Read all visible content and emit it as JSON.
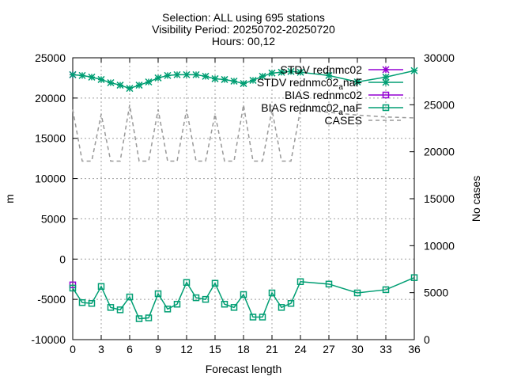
{
  "chart_data": {
    "type": "line",
    "title_lines": [
      "Selection: ALL using   695 stations",
      "Visibility   Period: 20250702-20250720",
      "Hours: 00,12"
    ],
    "xlabel": "Forecast length",
    "ylabel": "m",
    "y2label": "No cases",
    "xlim": [
      0,
      36
    ],
    "ylim": [
      -10000,
      25000
    ],
    "y2lim": [
      0,
      30000
    ],
    "xticks": [
      0,
      3,
      6,
      9,
      12,
      15,
      18,
      21,
      24,
      27,
      30,
      33,
      36
    ],
    "yticks": [
      -10000,
      -5000,
      0,
      5000,
      10000,
      15000,
      20000,
      25000
    ],
    "y2ticks": [
      0,
      5000,
      10000,
      15000,
      20000,
      25000,
      30000
    ],
    "grid": true,
    "legend_position": "top-right",
    "colors": {
      "redNMC": "#9400d3",
      "redNMC_naF": "#009e73",
      "cases": "#999999"
    },
    "series": [
      {
        "name": "STDV rednmc02",
        "legend_base": "STDV rednmc02",
        "legend_sub": "",
        "legend_tail": "",
        "color": "#9400d3",
        "marker": "star",
        "axis": "y",
        "x": [
          0
        ],
        "values": [
          22900
        ]
      },
      {
        "name": "STDV rednmc02_naF",
        "legend_base": "STDV rednmc02",
        "legend_sub": "a",
        "legend_tail": "naF",
        "color": "#009e73",
        "marker": "star",
        "axis": "y",
        "x": [
          0,
          1,
          2,
          3,
          4,
          5,
          6,
          7,
          8,
          9,
          10,
          11,
          12,
          13,
          14,
          15,
          16,
          17,
          18,
          19,
          20,
          21,
          22,
          23,
          24,
          27,
          30,
          33,
          36
        ],
        "values": [
          22900,
          22800,
          22600,
          22300,
          21900,
          21600,
          21200,
          21600,
          22000,
          22500,
          22800,
          22900,
          22900,
          22900,
          22700,
          22400,
          22300,
          22100,
          21800,
          22200,
          22700,
          23100,
          23200,
          23300,
          23200,
          22800,
          22000,
          22600,
          23400
        ]
      },
      {
        "name": "BIAS rednmc02",
        "legend_base": "BIAS rednmc02",
        "legend_sub": "",
        "legend_tail": "",
        "color": "#9400d3",
        "marker": "square",
        "axis": "y",
        "x": [
          0
        ],
        "values": [
          -3200
        ]
      },
      {
        "name": "BIAS rednmc02_naF",
        "legend_base": "BIAS rednmc02",
        "legend_sub": "a",
        "legend_tail": "naF",
        "color": "#009e73",
        "marker": "square",
        "axis": "y",
        "x": [
          0,
          1,
          2,
          3,
          4,
          5,
          6,
          7,
          8,
          9,
          10,
          11,
          12,
          13,
          14,
          15,
          16,
          17,
          18,
          19,
          20,
          21,
          22,
          23,
          24,
          27,
          30,
          33,
          36
        ],
        "values": [
          -3600,
          -5400,
          -5500,
          -3400,
          -6000,
          -6300,
          -4700,
          -7400,
          -7300,
          -4300,
          -6200,
          -5600,
          -2900,
          -4800,
          -5000,
          -3000,
          -5600,
          -6000,
          -4400,
          -7200,
          -7200,
          -4200,
          -6000,
          -5500,
          -2800,
          -3100,
          -4200,
          -3800,
          -2300
        ]
      },
      {
        "name": "CASES",
        "legend_base": "CASES",
        "legend_sub": "",
        "legend_tail": "",
        "color": "#999999",
        "marker": "none",
        "dashed": true,
        "axis": "y2",
        "x": [
          0,
          1,
          2,
          3,
          4,
          5,
          6,
          7,
          8,
          9,
          10,
          11,
          12,
          13,
          14,
          15,
          16,
          17,
          18,
          19,
          20,
          21,
          22,
          23,
          24,
          27,
          30,
          33,
          36
        ],
        "values": [
          24500,
          19000,
          19000,
          24000,
          19000,
          19000,
          25000,
          19000,
          19000,
          24500,
          19000,
          19000,
          24500,
          19000,
          19000,
          24000,
          19000,
          19000,
          25000,
          19000,
          19000,
          24500,
          19000,
          19000,
          24500,
          24200,
          23900,
          23700,
          23600
        ]
      }
    ]
  }
}
